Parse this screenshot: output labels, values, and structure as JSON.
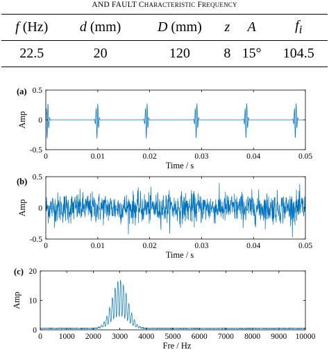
{
  "table": {
    "caption_visible": "and Fault Characteristic Frequency",
    "headers": [
      {
        "sym": "f",
        "unit": " (Hz)"
      },
      {
        "sym": "d",
        "unit": " (mm)"
      },
      {
        "sym": "D",
        "unit": " (mm)"
      },
      {
        "sym": "z",
        "unit": ""
      },
      {
        "sym": "A",
        "unit": ""
      },
      {
        "sym": "f",
        "sub": "i",
        "unit": ""
      }
    ],
    "row": [
      "22.5",
      "20",
      "120",
      "8",
      "15°",
      "104.5"
    ]
  },
  "chart_data": [
    {
      "panel_label": "(a)",
      "type": "line",
      "xlabel": "Time / s",
      "ylabel": "Amp",
      "xlim": [
        0,
        0.05
      ],
      "ylim": [
        -0.5,
        0.5
      ],
      "xticks": [
        "0",
        "0.01",
        "0.02",
        "0.03",
        "0.04",
        "0.05"
      ],
      "yticks": [
        "-0.5",
        "0",
        "0.5"
      ],
      "impulse_times": [
        0.0,
        0.0096,
        0.0191,
        0.0287,
        0.0383,
        0.0478
      ],
      "impulse_peak": 0.32,
      "color": "#0072BD"
    },
    {
      "panel_label": "(b)",
      "type": "line",
      "xlabel": "Time / s",
      "ylabel": "Amp",
      "xlim": [
        0,
        0.05
      ],
      "ylim": [
        -0.5,
        0.5
      ],
      "xticks": [
        "0",
        "0.01",
        "0.02",
        "0.03",
        "0.04",
        "0.05"
      ],
      "yticks": [
        "-0.5",
        "0",
        "0.5"
      ],
      "noise_amplitude": 0.32,
      "color": "#0072BD"
    },
    {
      "panel_label": "(c)",
      "type": "line",
      "xlabel": "Fre / Hz",
      "ylabel": "Amp",
      "xlim": [
        0,
        10000
      ],
      "ylim": [
        0,
        20
      ],
      "xticks": [
        "0",
        "1000",
        "2000",
        "3000",
        "4000",
        "5000",
        "6000",
        "7000",
        "8000",
        "9000",
        "10000"
      ],
      "yticks": [
        "0",
        "10",
        "20"
      ],
      "spectrum_center_hz": 3000,
      "spectrum_peak": 16.5,
      "sideband_spacing_hz": 104.5,
      "color": "#0072BD"
    }
  ]
}
